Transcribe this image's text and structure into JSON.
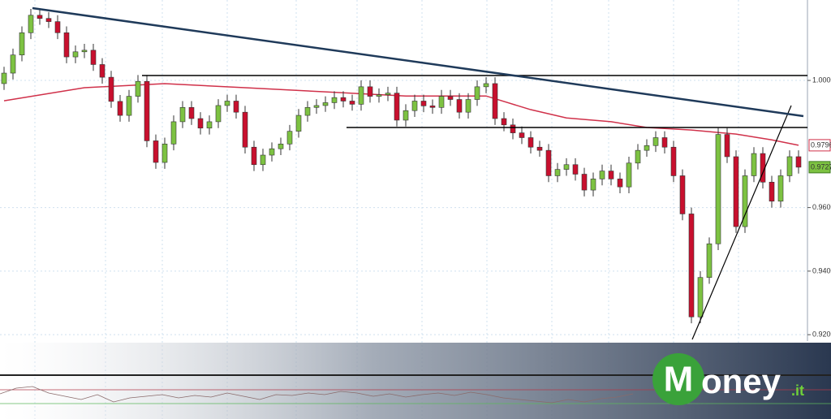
{
  "chart_data": {
    "type": "candlestick",
    "up_color": "#7dc242",
    "down_color": "#c8102e",
    "ylim": [
      0.918,
      1.0253
    ],
    "yticks": [
      {
        "value": 1.0,
        "label": "1.0000"
      },
      {
        "value": 0.96,
        "label": "0.9600"
      },
      {
        "value": 0.94,
        "label": "0.9400"
      },
      {
        "value": 0.92,
        "label": "0.9200"
      }
    ],
    "grid": true,
    "candles": [
      [
        0.999,
        1.0043,
        0.997,
        1.0023
      ],
      [
        1.0023,
        1.01,
        1.0003,
        1.008
      ],
      [
        1.008,
        1.017,
        1.006,
        1.015
      ],
      [
        1.015,
        1.0225,
        1.013,
        1.0205
      ],
      [
        1.0205,
        1.0225,
        1.0175,
        1.0195
      ],
      [
        1.0195,
        1.0215,
        1.0165,
        1.0185
      ],
      [
        1.0185,
        1.0205,
        1.013,
        1.015
      ],
      [
        1.015,
        1.017,
        1.0054,
        1.0074
      ],
      [
        1.0074,
        1.011,
        1.0054,
        1.009
      ],
      [
        1.009,
        1.0115,
        1.007,
        1.0095
      ],
      [
        1.0095,
        1.0115,
        1.003,
        1.005
      ],
      [
        1.005,
        1.007,
        0.999,
        1.001
      ],
      [
        1.001,
        1.003,
        0.9914,
        0.9934
      ],
      [
        0.9934,
        0.9954,
        0.987,
        0.989
      ],
      [
        0.989,
        0.997,
        0.987,
        0.995
      ],
      [
        0.995,
        1.0017,
        0.993,
        0.9997
      ],
      [
        0.9997,
        1.0017,
        0.979,
        0.981
      ],
      [
        0.981,
        0.983,
        0.9722,
        0.9742
      ],
      [
        0.9742,
        0.982,
        0.9722,
        0.98
      ],
      [
        0.98,
        0.989,
        0.978,
        0.987
      ],
      [
        0.987,
        0.9935,
        0.985,
        0.9915
      ],
      [
        0.9915,
        0.9935,
        0.986,
        0.988
      ],
      [
        0.988,
        0.99,
        0.983,
        0.985
      ],
      [
        0.985,
        0.989,
        0.983,
        0.987
      ],
      [
        0.987,
        0.9941,
        0.985,
        0.9921
      ],
      [
        0.9921,
        0.9955,
        0.9901,
        0.9935
      ],
      [
        0.9935,
        0.9955,
        0.988,
        0.99
      ],
      [
        0.99,
        0.992,
        0.977,
        0.979
      ],
      [
        0.979,
        0.981,
        0.9715,
        0.9735
      ],
      [
        0.9735,
        0.9785,
        0.9715,
        0.9765
      ],
      [
        0.9765,
        0.9805,
        0.9745,
        0.9785
      ],
      [
        0.9785,
        0.982,
        0.9765,
        0.98
      ],
      [
        0.98,
        0.986,
        0.978,
        0.984
      ],
      [
        0.984,
        0.991,
        0.982,
        0.989
      ],
      [
        0.989,
        0.9935,
        0.987,
        0.9915
      ],
      [
        0.9915,
        0.9941,
        0.9895,
        0.9921
      ],
      [
        0.9921,
        0.995,
        0.9901,
        0.993
      ],
      [
        0.993,
        0.9966,
        0.991,
        0.9946
      ],
      [
        0.9946,
        0.9966,
        0.9915,
        0.9935
      ],
      [
        0.9935,
        0.9955,
        0.9905,
        0.9925
      ],
      [
        0.9925,
        1.0,
        0.9905,
        0.998
      ],
      [
        0.998,
        1.0,
        0.993,
        0.995
      ],
      [
        0.995,
        0.9975,
        0.993,
        0.9955
      ],
      [
        0.9955,
        0.998,
        0.9935,
        0.996
      ],
      [
        0.996,
        0.998,
        0.9855,
        0.9875
      ],
      [
        0.9875,
        0.9925,
        0.9855,
        0.9905
      ],
      [
        0.9905,
        0.9955,
        0.9885,
        0.9935
      ],
      [
        0.9935,
        0.9955,
        0.99,
        0.992
      ],
      [
        0.992,
        0.994,
        0.9895,
        0.9915
      ],
      [
        0.9915,
        0.997,
        0.9895,
        0.995
      ],
      [
        0.995,
        0.997,
        0.992,
        0.994
      ],
      [
        0.994,
        0.996,
        0.988,
        0.99
      ],
      [
        0.99,
        0.996,
        0.988,
        0.994
      ],
      [
        0.994,
        1.0,
        0.992,
        0.998
      ],
      [
        0.998,
        1.001,
        0.996,
        0.999
      ],
      [
        0.999,
        1.001,
        0.986,
        0.988
      ],
      [
        0.988,
        0.99,
        0.984,
        0.986
      ],
      [
        0.986,
        0.988,
        0.9815,
        0.9835
      ],
      [
        0.9835,
        0.9855,
        0.98,
        0.982
      ],
      [
        0.982,
        0.984,
        0.977,
        0.979
      ],
      [
        0.979,
        0.981,
        0.976,
        0.978
      ],
      [
        0.978,
        0.98,
        0.968,
        0.97
      ],
      [
        0.97,
        0.974,
        0.968,
        0.972
      ],
      [
        0.972,
        0.9755,
        0.97,
        0.9735
      ],
      [
        0.9735,
        0.9755,
        0.9685,
        0.9705
      ],
      [
        0.9705,
        0.9725,
        0.9635,
        0.9655
      ],
      [
        0.9655,
        0.971,
        0.9635,
        0.969
      ],
      [
        0.969,
        0.9735,
        0.967,
        0.9715
      ],
      [
        0.9715,
        0.9735,
        0.967,
        0.969
      ],
      [
        0.969,
        0.971,
        0.9645,
        0.9665
      ],
      [
        0.9665,
        0.976,
        0.9645,
        0.974
      ],
      [
        0.974,
        0.98,
        0.972,
        0.978
      ],
      [
        0.978,
        0.9815,
        0.976,
        0.9795
      ],
      [
        0.9795,
        0.984,
        0.9775,
        0.982
      ],
      [
        0.982,
        0.984,
        0.977,
        0.979
      ],
      [
        0.979,
        0.981,
        0.968,
        0.97
      ],
      [
        0.97,
        0.972,
        0.956,
        0.958
      ],
      [
        0.958,
        0.96,
        0.9236,
        0.9256
      ],
      [
        0.9256,
        0.94,
        0.9236,
        0.938
      ],
      [
        0.938,
        0.9506,
        0.936,
        0.9486
      ],
      [
        0.9486,
        0.985,
        0.9466,
        0.983
      ],
      [
        0.983,
        0.985,
        0.974,
        0.976
      ],
      [
        0.976,
        0.978,
        0.952,
        0.954
      ],
      [
        0.954,
        0.972,
        0.952,
        0.97
      ],
      [
        0.97,
        0.979,
        0.968,
        0.977
      ],
      [
        0.977,
        0.979,
        0.966,
        0.968
      ],
      [
        0.968,
        0.97,
        0.96,
        0.962
      ],
      [
        0.962,
        0.972,
        0.96,
        0.97
      ],
      [
        0.97,
        0.978,
        0.968,
        0.976
      ],
      [
        0.976,
        0.978,
        0.9707,
        0.9727
      ]
    ],
    "ma": {
      "color": "#d0314a",
      "x": [
        0,
        9,
        18,
        27,
        36,
        45,
        54,
        59,
        63,
        68,
        72,
        77,
        82,
        86,
        89
      ],
      "values": [
        0.9936,
        0.9977,
        0.999,
        0.9977,
        0.9964,
        0.9951,
        0.9951,
        0.9908,
        0.9882,
        0.987,
        0.9852,
        0.9844,
        0.9831,
        0.9813,
        0.9796
      ]
    },
    "ma_tag": {
      "value": 0.9796,
      "label": "0.9796"
    },
    "price_tag": {
      "value": 0.9727,
      "label": "0.9727"
    }
  },
  "logo": {
    "initial": "M",
    "rest": "oney",
    "domain": ".it"
  }
}
